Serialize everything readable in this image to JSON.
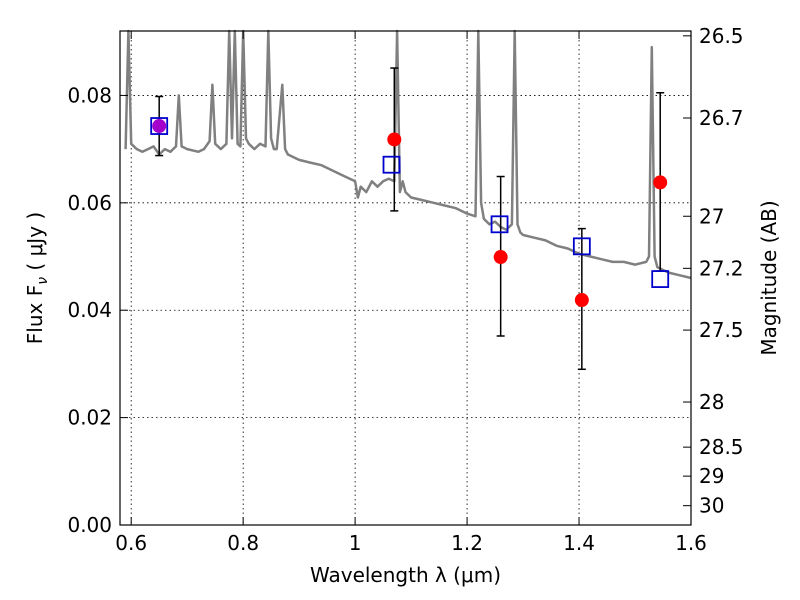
{
  "chart_data": {
    "type": "scatter",
    "xlabel": "Wavelength  λ (μm)",
    "ylabel": "Flux  F",
    "ylabel_sub": "ν",
    "ylabel_unit": "  ( μJy )",
    "y2label": "Magnitude (AB)",
    "xlim": [
      0.58,
      1.6
    ],
    "ylim": [
      0.0,
      0.092
    ],
    "grid": true,
    "x_ticks": [
      0.6,
      0.8,
      1.0,
      1.2,
      1.4,
      1.6
    ],
    "x_tick_labels": [
      "0.6",
      "0.8",
      "1",
      "1.2",
      "1.4",
      "1.6"
    ],
    "y_ticks": [
      0.0,
      0.02,
      0.04,
      0.06,
      0.08
    ],
    "y_tick_labels": [
      "0.00",
      "0.02",
      "0.04",
      "0.06",
      "0.08"
    ],
    "y2_ticks": [
      {
        "label": "26.5",
        "flux": 0.0911
      },
      {
        "label": "26.7",
        "flux": 0.0758
      },
      {
        "label": "27",
        "flux": 0.0575
      },
      {
        "label": "27.2",
        "flux": 0.0478
      },
      {
        "label": "27.5",
        "flux": 0.0363
      },
      {
        "label": "28",
        "flux": 0.0229
      },
      {
        "label": "28.5",
        "flux": 0.0145
      },
      {
        "label": "29",
        "flux": 0.0091
      },
      {
        "label": "30",
        "flux": 0.0036
      }
    ],
    "series": [
      {
        "marker": "circle",
        "color": "#ff0000",
        "x": [
          0.65,
          1.07,
          1.26,
          1.405,
          1.545
        ],
        "y": [
          0.0743,
          0.0718,
          0.0499,
          0.0419,
          0.0638
        ],
        "yerr_low": [
          0.0688,
          0.0585,
          0.0352,
          0.029,
          0.0473
        ],
        "yerr_high": [
          0.0798,
          0.0851,
          0.0649,
          0.0552,
          0.0805
        ]
      },
      {
        "marker": "open-square",
        "color": "#0000cc",
        "x": [
          0.65,
          1.065,
          1.258,
          1.405,
          1.545
        ],
        "y": [
          0.0743,
          0.0671,
          0.056,
          0.0519,
          0.0458
        ]
      },
      {
        "type": "line",
        "color": "#808080",
        "x": [
          0.59,
          0.595,
          0.6,
          0.61,
          0.62,
          0.63,
          0.64,
          0.65,
          0.66,
          0.67,
          0.68,
          0.685,
          0.69,
          0.7,
          0.72,
          0.73,
          0.74,
          0.745,
          0.75,
          0.755,
          0.76,
          0.77,
          0.775,
          0.78,
          0.785,
          0.79,
          0.795,
          0.8,
          0.805,
          0.81,
          0.82,
          0.83,
          0.84,
          0.845,
          0.85,
          0.855,
          0.86,
          0.87,
          0.875,
          0.88,
          0.9,
          0.92,
          0.94,
          0.96,
          0.98,
          1.0,
          1.005,
          1.01,
          1.02,
          1.03,
          1.04,
          1.05,
          1.06,
          1.07,
          1.075,
          1.08,
          1.085,
          1.09,
          1.1,
          1.12,
          1.14,
          1.16,
          1.18,
          1.2,
          1.215,
          1.22,
          1.225,
          1.23,
          1.24,
          1.25,
          1.26,
          1.27,
          1.28,
          1.285,
          1.29,
          1.295,
          1.3,
          1.32,
          1.34,
          1.36,
          1.38,
          1.4,
          1.42,
          1.44,
          1.46,
          1.48,
          1.5,
          1.52,
          1.525,
          1.53,
          1.535,
          1.54,
          1.56,
          1.58,
          1.6
        ],
        "y": [
          0.07,
          0.093,
          0.071,
          0.07,
          0.0695,
          0.07,
          0.0705,
          0.069,
          0.07,
          0.0695,
          0.0705,
          0.08,
          0.0705,
          0.07,
          0.0695,
          0.07,
          0.0715,
          0.082,
          0.071,
          0.0705,
          0.07,
          0.071,
          0.093,
          0.072,
          0.093,
          0.071,
          0.0705,
          0.093,
          0.072,
          0.071,
          0.07,
          0.071,
          0.0705,
          0.093,
          0.072,
          0.07,
          0.07,
          0.082,
          0.07,
          0.069,
          0.068,
          0.0675,
          0.067,
          0.066,
          0.065,
          0.064,
          0.061,
          0.063,
          0.062,
          0.064,
          0.063,
          0.064,
          0.0645,
          0.064,
          0.093,
          0.062,
          0.064,
          0.062,
          0.061,
          0.0605,
          0.06,
          0.0595,
          0.059,
          0.058,
          0.0575,
          0.093,
          0.06,
          0.057,
          0.056,
          0.0565,
          0.0555,
          0.055,
          0.056,
          0.093,
          0.056,
          0.0545,
          0.054,
          0.0535,
          0.053,
          0.052,
          0.0515,
          0.0505,
          0.05,
          0.0495,
          0.049,
          0.049,
          0.0485,
          0.049,
          0.05,
          0.089,
          0.05,
          0.048,
          0.047,
          0.0465,
          0.046
        ]
      }
    ]
  }
}
